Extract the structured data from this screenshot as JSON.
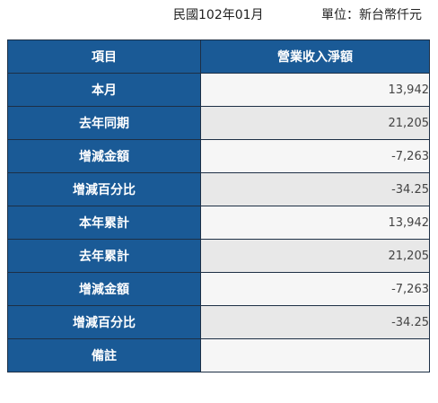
{
  "header": {
    "period": "民國102年01月",
    "unit": "單位：新台幣仟元"
  },
  "table": {
    "columns": [
      "項目",
      "營業收入淨額"
    ],
    "rows": [
      {
        "label": "本月",
        "value": "13,942"
      },
      {
        "label": "去年同期",
        "value": "21,205"
      },
      {
        "label": "增減金額",
        "value": "-7,263"
      },
      {
        "label": "增減百分比",
        "value": "-34.25"
      },
      {
        "label": "本年累計",
        "value": "13,942"
      },
      {
        "label": "去年累計",
        "value": "21,205"
      },
      {
        "label": "增減金額",
        "value": "-7,263"
      },
      {
        "label": "增減百分比",
        "value": "-34.25"
      },
      {
        "label": "備註",
        "value": ""
      }
    ]
  },
  "colors": {
    "header_bg": "#1a5a96",
    "border": "#1d2f45",
    "row_light": "#f6f6f6",
    "row_dark": "#e8e8e8"
  }
}
